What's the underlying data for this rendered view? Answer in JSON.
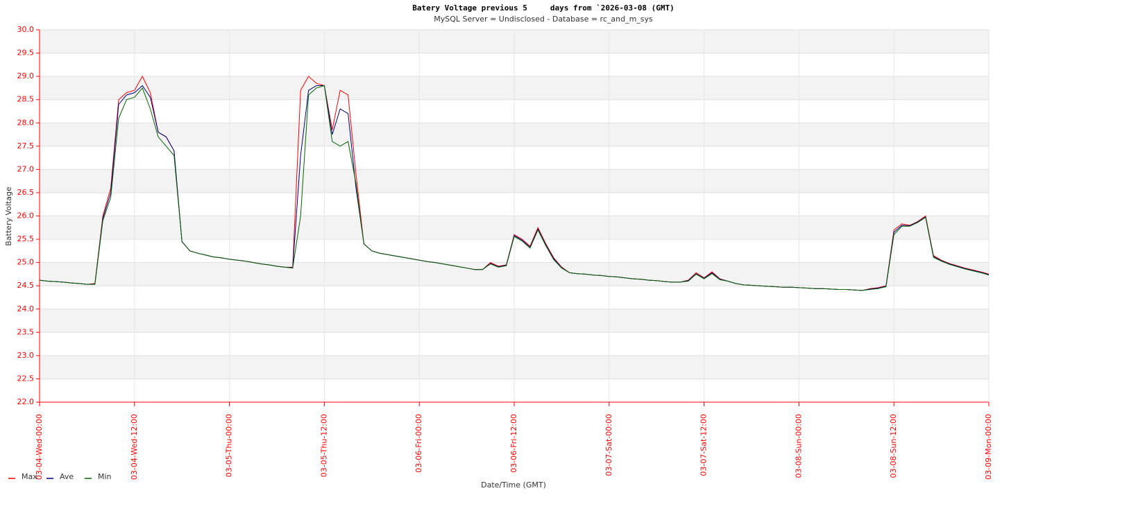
{
  "chart_data": {
    "type": "line",
    "title": "Batery Voltage previous 5     days from `2026-03-08 (GMT)",
    "subtitle": "MySQL Server = Undisclosed - Database = rc_and_m_sys",
    "y_label": "Battery Voltage",
    "x_label": "Date/Time (GMT)",
    "grid": true,
    "legend": "bottom-left",
    "xlim": [
      0,
      120
    ],
    "xticks": [
      {
        "value": 0,
        "label": "03-04-Wed-00:00"
      },
      {
        "value": 12,
        "label": "03-04-Wed-12:00"
      },
      {
        "value": 24,
        "label": "03-05-Thu-00:00"
      },
      {
        "value": 36,
        "label": "03-05-Thu-12:00"
      },
      {
        "value": 48,
        "label": "03-06-Fri-00:00"
      },
      {
        "value": 60,
        "label": "03-06-Fri-12:00"
      },
      {
        "value": 72,
        "label": "03-07-Sat-00:00"
      },
      {
        "value": 84,
        "label": "03-07-Sat-12:00"
      },
      {
        "value": 96,
        "label": "03-08-Sun-00:00"
      },
      {
        "value": 108,
        "label": "03-08-Sun-12:00"
      },
      {
        "value": 120,
        "label": "03-09-Mon-00:00"
      }
    ],
    "ylim": [
      22,
      30
    ],
    "yticks": [
      {
        "value": 22,
        "label": "22.0"
      },
      22.5,
      {
        "value": 23,
        "label": "23.0"
      },
      23.5,
      {
        "value": 24,
        "label": "24.0"
      },
      24.5,
      {
        "value": 25,
        "label": "25.0"
      },
      25.5,
      {
        "value": 26,
        "label": "26.0"
      },
      26.5,
      {
        "value": 27,
        "label": "27.0"
      },
      27.5,
      {
        "value": 28,
        "label": "28.0"
      },
      28.5,
      {
        "value": 29,
        "label": "29.0"
      },
      29.5,
      {
        "value": 30,
        "label": "30.0"
      }
    ],
    "x": [
      0,
      1,
      2,
      3,
      4,
      5,
      6,
      7,
      8,
      9,
      10,
      11,
      12,
      13,
      14,
      15,
      16,
      17,
      18,
      19,
      20,
      21,
      22,
      23,
      24,
      25,
      26,
      27,
      28,
      29,
      30,
      31,
      32,
      33,
      34,
      35,
      36,
      37,
      38,
      39,
      40,
      41,
      42,
      43,
      44,
      45,
      46,
      47,
      48,
      49,
      50,
      51,
      52,
      53,
      54,
      55,
      56,
      57,
      58,
      59,
      60,
      61,
      62,
      63,
      64,
      65,
      66,
      67,
      68,
      69,
      70,
      71,
      72,
      73,
      74,
      75,
      76,
      77,
      78,
      79,
      80,
      81,
      82,
      83,
      84,
      85,
      86,
      87,
      88,
      89,
      90,
      91,
      92,
      93,
      94,
      95,
      96,
      97,
      98,
      99,
      100,
      101,
      102,
      103,
      104,
      105,
      106,
      107,
      108,
      109,
      110,
      111,
      112,
      113,
      114,
      115,
      116,
      117,
      118,
      119,
      120
    ],
    "series": [
      {
        "name": "Max",
        "color": "#ff0000",
        "values": [
          24.62,
          24.6,
          24.59,
          24.58,
          24.56,
          24.55,
          24.53,
          24.55,
          26.0,
          26.6,
          28.5,
          28.65,
          28.7,
          29.0,
          28.65,
          27.8,
          27.7,
          27.4,
          25.45,
          25.25,
          25.2,
          25.16,
          25.12,
          25.1,
          25.07,
          25.05,
          25.03,
          25.0,
          24.97,
          24.95,
          24.92,
          24.9,
          24.9,
          28.7,
          29.0,
          28.85,
          28.8,
          27.85,
          28.7,
          28.6,
          26.9,
          25.4,
          25.25,
          25.2,
          25.17,
          25.14,
          25.11,
          25.08,
          25.05,
          25.02,
          25.0,
          24.97,
          24.94,
          24.91,
          24.88,
          24.85,
          24.85,
          25.0,
          24.92,
          24.95,
          25.6,
          25.5,
          25.35,
          25.75,
          25.4,
          25.1,
          24.9,
          24.78,
          24.76,
          24.75,
          24.73,
          24.72,
          24.7,
          24.69,
          24.67,
          24.65,
          24.64,
          24.62,
          24.61,
          24.59,
          24.58,
          24.58,
          24.62,
          24.78,
          24.67,
          24.8,
          24.65,
          24.6,
          24.55,
          24.52,
          24.51,
          24.5,
          24.49,
          24.48,
          24.47,
          24.47,
          24.46,
          24.45,
          24.44,
          24.44,
          24.43,
          24.42,
          24.42,
          24.41,
          24.4,
          24.44,
          24.46,
          24.5,
          25.7,
          25.83,
          25.8,
          25.88,
          26.0,
          25.15,
          25.05,
          24.98,
          24.93,
          24.88,
          24.84,
          24.8,
          24.75
        ]
      },
      {
        "name": "Ave",
        "color": "#000080",
        "values": [
          24.62,
          24.6,
          24.59,
          24.58,
          24.56,
          24.55,
          24.53,
          24.54,
          25.95,
          26.5,
          28.4,
          28.6,
          28.65,
          28.8,
          28.55,
          27.8,
          27.7,
          27.4,
          25.45,
          25.25,
          25.2,
          25.16,
          25.12,
          25.1,
          25.07,
          25.05,
          25.03,
          25.0,
          24.97,
          24.95,
          24.92,
          24.9,
          24.89,
          27.3,
          28.7,
          28.8,
          28.8,
          27.75,
          28.3,
          28.2,
          26.6,
          25.4,
          25.25,
          25.2,
          25.17,
          25.14,
          25.11,
          25.08,
          25.05,
          25.02,
          25.0,
          24.97,
          24.94,
          24.91,
          24.88,
          24.85,
          24.85,
          24.98,
          24.91,
          24.94,
          25.58,
          25.48,
          25.33,
          25.72,
          25.38,
          25.08,
          24.89,
          24.78,
          24.76,
          24.75,
          24.73,
          24.72,
          24.7,
          24.69,
          24.67,
          24.65,
          24.64,
          24.62,
          24.61,
          24.59,
          24.58,
          24.58,
          24.61,
          24.76,
          24.66,
          24.78,
          24.64,
          24.6,
          24.55,
          24.52,
          24.51,
          24.5,
          24.49,
          24.48,
          24.47,
          24.47,
          24.46,
          24.45,
          24.44,
          24.44,
          24.43,
          24.42,
          24.42,
          24.41,
          24.4,
          24.43,
          24.45,
          24.49,
          25.65,
          25.8,
          25.79,
          25.87,
          25.98,
          25.13,
          25.04,
          24.97,
          24.92,
          24.87,
          24.83,
          24.79,
          24.74
        ]
      },
      {
        "name": "Min",
        "color": "#006400",
        "values": [
          24.62,
          24.6,
          24.59,
          24.58,
          24.56,
          24.55,
          24.53,
          24.53,
          25.9,
          26.4,
          28.1,
          28.5,
          28.55,
          28.75,
          28.3,
          27.7,
          27.5,
          27.3,
          25.45,
          25.25,
          25.2,
          25.16,
          25.12,
          25.1,
          25.07,
          25.05,
          25.03,
          25.0,
          24.97,
          24.95,
          24.92,
          24.9,
          24.88,
          26.0,
          28.6,
          28.75,
          28.8,
          27.6,
          27.5,
          27.6,
          26.7,
          25.4,
          25.25,
          25.2,
          25.17,
          25.14,
          25.11,
          25.08,
          25.05,
          25.02,
          25.0,
          24.97,
          24.94,
          24.91,
          24.88,
          24.85,
          24.85,
          24.97,
          24.9,
          24.93,
          25.56,
          25.46,
          25.31,
          25.7,
          25.36,
          25.06,
          24.88,
          24.78,
          24.76,
          24.75,
          24.73,
          24.72,
          24.7,
          24.69,
          24.67,
          24.65,
          24.64,
          24.62,
          24.61,
          24.59,
          24.58,
          24.58,
          24.6,
          24.75,
          24.65,
          24.76,
          24.63,
          24.6,
          24.55,
          24.52,
          24.51,
          24.5,
          24.49,
          24.48,
          24.47,
          24.47,
          24.46,
          24.45,
          24.44,
          24.44,
          24.43,
          24.42,
          24.42,
          24.41,
          24.4,
          24.42,
          24.44,
          24.48,
          25.6,
          25.78,
          25.78,
          25.86,
          25.97,
          25.11,
          25.03,
          24.96,
          24.91,
          24.86,
          24.82,
          24.78,
          24.73
        ]
      }
    ]
  }
}
